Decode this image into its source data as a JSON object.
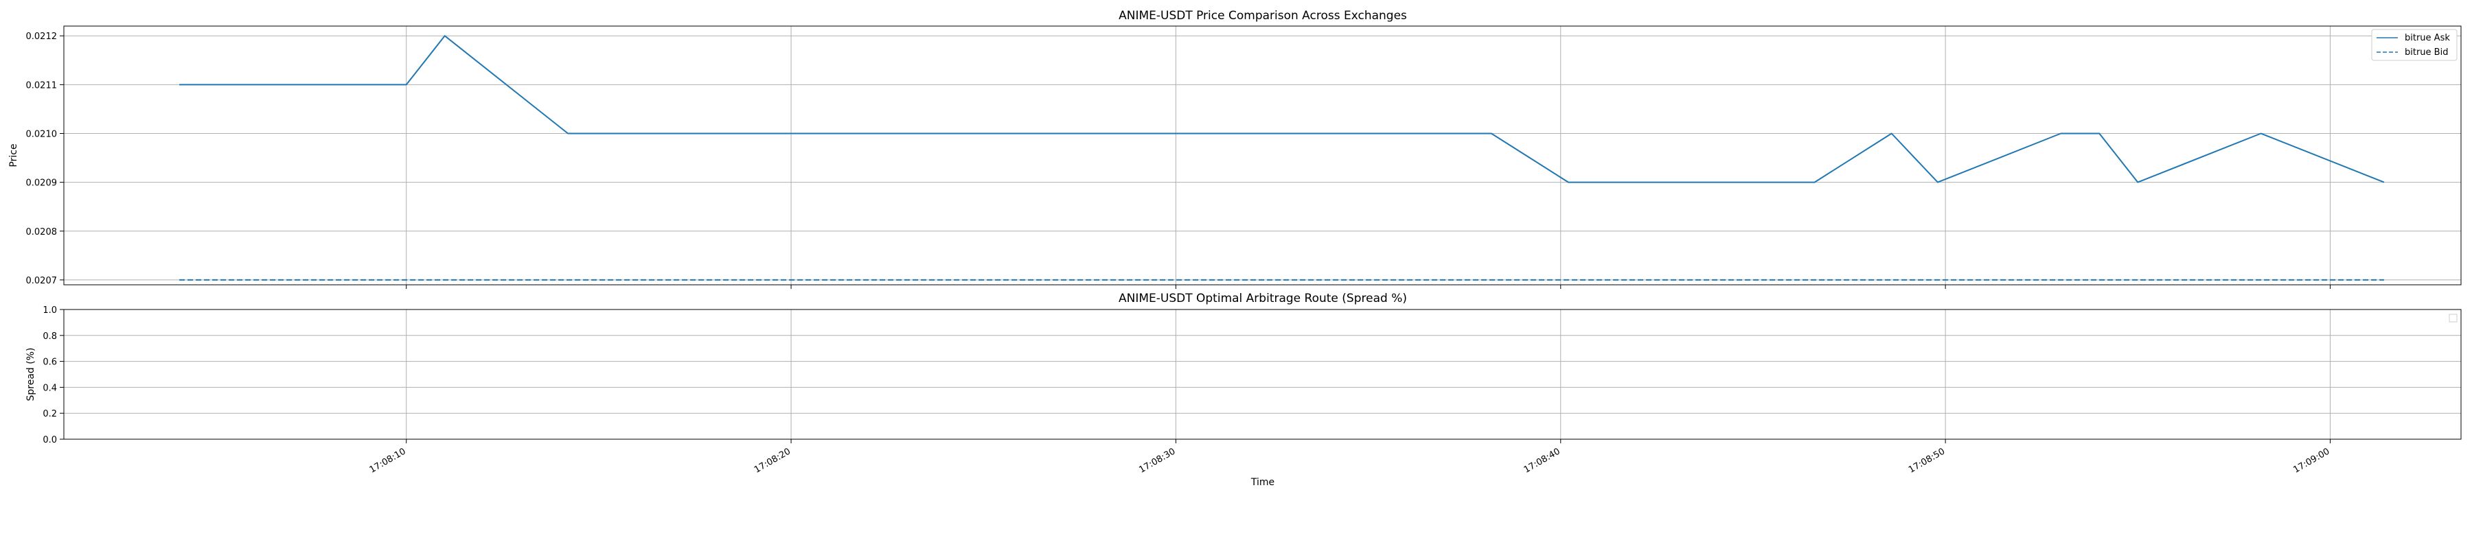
{
  "chart_data": [
    {
      "type": "line",
      "title": "ANIME-USDT Price Comparison Across Exchanges",
      "xlabel": "",
      "ylabel": "Price",
      "ylim": [
        0.02069,
        0.02122
      ],
      "yticks": [
        "0.0207",
        "0.0208",
        "0.0209",
        "0.0210",
        "0.0211",
        "0.0212"
      ],
      "xlim": [
        "17:08:01.1",
        "17:09:03.4"
      ],
      "grid": true,
      "legend_position": "upper right",
      "series": [
        {
          "name": "bitrue Ask",
          "style": "solid",
          "color": "#1f77b4",
          "points": [
            [
              "17:08:04.1",
              0.0211
            ],
            [
              "17:08:10.0",
              0.0211
            ],
            [
              "17:08:11.0",
              0.0212
            ],
            [
              "17:08:14.2",
              0.021
            ],
            [
              "17:08:38.2",
              0.021
            ],
            [
              "17:08:40.2",
              0.0209
            ],
            [
              "17:08:46.6",
              0.0209
            ],
            [
              "17:08:48.6",
              0.021
            ],
            [
              "17:08:49.8",
              0.0209
            ],
            [
              "17:08:53.0",
              0.021
            ],
            [
              "17:08:54.0",
              0.021
            ],
            [
              "17:08:55.0",
              0.0209
            ],
            [
              "17:08:58.2",
              0.021
            ],
            [
              "17:09:01.4",
              0.0209
            ]
          ]
        },
        {
          "name": "bitrue Bid",
          "style": "dashed",
          "color": "#1f77b4",
          "points": [
            [
              "17:08:04.1",
              0.0207
            ],
            [
              "17:09:01.4",
              0.0207
            ]
          ]
        }
      ]
    },
    {
      "type": "line",
      "title": "ANIME-USDT Optimal Arbitrage Route (Spread %)",
      "xlabel": "Time",
      "ylabel": "Spread (%)",
      "ylim": [
        0.0,
        1.0
      ],
      "yticks": [
        "0.0",
        "0.2",
        "0.4",
        "0.6",
        "0.8",
        "1.0"
      ],
      "xlim": [
        "17:08:01.1",
        "17:09:03.4"
      ],
      "xticks": [
        "17:08:10",
        "17:08:20",
        "17:08:30",
        "17:08:40",
        "17:08:50",
        "17:09:00"
      ],
      "grid": true,
      "legend_position": "upper right",
      "series": []
    }
  ]
}
